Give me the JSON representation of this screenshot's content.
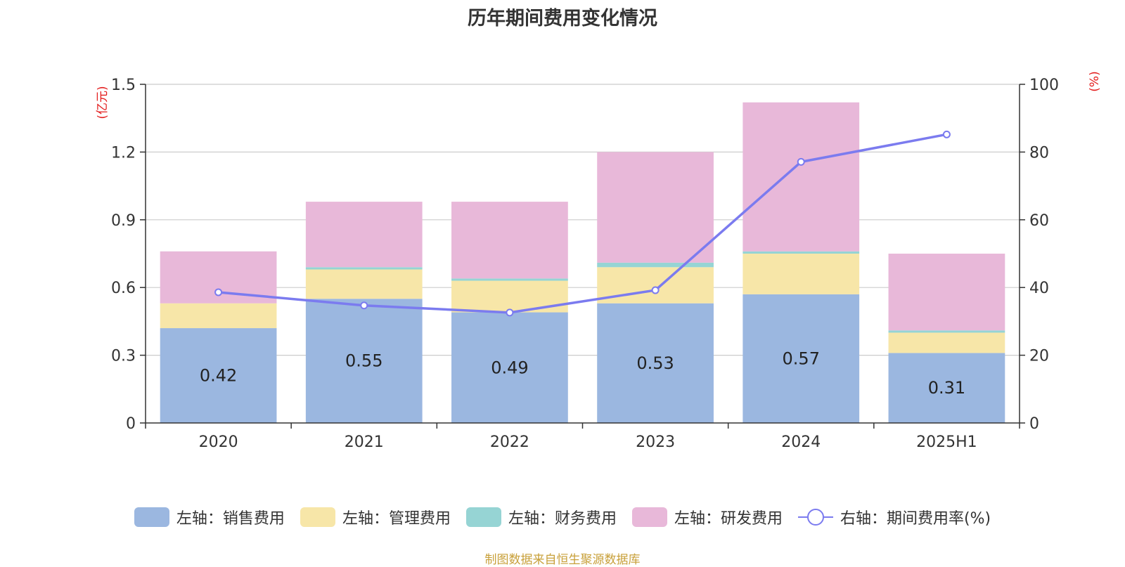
{
  "title": "历年期间费用变化情况",
  "source": "制图数据来自恒生聚源数据库",
  "chart_data": {
    "type": "bar",
    "stacked": true,
    "categories": [
      "2020",
      "2021",
      "2022",
      "2023",
      "2024",
      "2025H1"
    ],
    "left_axis": {
      "label": "(亿元)",
      "ylim": [
        0,
        1.5
      ],
      "ticks": [
        "0",
        "0.3",
        "0.6",
        "0.9",
        "1.2",
        "1.5"
      ],
      "tick_values": [
        0,
        0.3,
        0.6,
        0.9,
        1.2,
        1.5
      ]
    },
    "right_axis": {
      "label": "(%)",
      "ylim": [
        0,
        100
      ],
      "ticks": [
        "0",
        "20",
        "40",
        "60",
        "80",
        "100"
      ],
      "tick_values": [
        0,
        20,
        40,
        60,
        80,
        100
      ]
    },
    "series": [
      {
        "name": "左轴：销售费用",
        "axis": "left",
        "type": "bar",
        "color": "#9bb7e0",
        "values": [
          0.42,
          0.55,
          0.49,
          0.53,
          0.57,
          0.31
        ],
        "labels": [
          "0.42",
          "0.55",
          "0.49",
          "0.53",
          "0.57",
          "0.31"
        ]
      },
      {
        "name": "左轴：管理费用",
        "axis": "left",
        "type": "bar",
        "color": "#f7e6a8",
        "values": [
          0.11,
          0.13,
          0.14,
          0.16,
          0.18,
          0.09
        ]
      },
      {
        "name": "左轴：财务费用",
        "axis": "left",
        "type": "bar",
        "color": "#96d4d4",
        "values": [
          0.0,
          0.01,
          0.01,
          0.02,
          0.01,
          0.01
        ]
      },
      {
        "name": "左轴：研发费用",
        "axis": "left",
        "type": "bar",
        "color": "#e8b8d9",
        "values": [
          0.23,
          0.29,
          0.34,
          0.49,
          0.66,
          0.34
        ]
      },
      {
        "name": "右轴：期间费用率(%)",
        "axis": "right",
        "type": "line",
        "color": "#7b7bef",
        "values": [
          38.6,
          34.7,
          32.6,
          39.2,
          77.1,
          85.2
        ]
      }
    ],
    "grid": true,
    "legend_position": "bottom"
  }
}
